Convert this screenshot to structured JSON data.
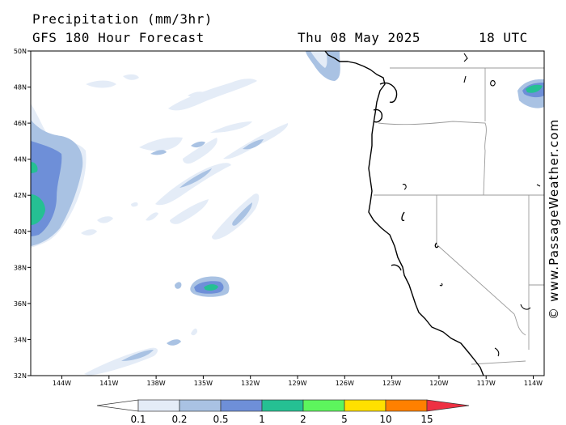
{
  "header": {
    "title": "Precipitation (mm/3hr)",
    "model": "GFS 180 Hour Forecast",
    "date": "Thu 08 May 2025",
    "time": "18 UTC"
  },
  "credit": "© www.PassageWeather.com",
  "map": {
    "projection": "lat-lon",
    "lat_range": [
      32,
      50
    ],
    "lon_range": [
      -146,
      -113
    ],
    "lat_ticks": [
      "50N",
      "48N",
      "46N",
      "44N",
      "42N",
      "40N",
      "38N",
      "36N",
      "34N",
      "32N"
    ],
    "lon_ticks": [
      "144W",
      "141W",
      "138W",
      "135W",
      "132W",
      "129W",
      "126W",
      "123W",
      "120W",
      "117W",
      "114W"
    ]
  },
  "legend": {
    "labels": [
      "0.1",
      "0.2",
      "0.5",
      "1",
      "2",
      "5",
      "10",
      "15"
    ],
    "colors": [
      "#ffffff",
      "#e4ecf7",
      "#a9c2e3",
      "#6e8fd8",
      "#25c093",
      "#5df55d",
      "#ffe000",
      "#ff8000",
      "#ee3042"
    ]
  }
}
